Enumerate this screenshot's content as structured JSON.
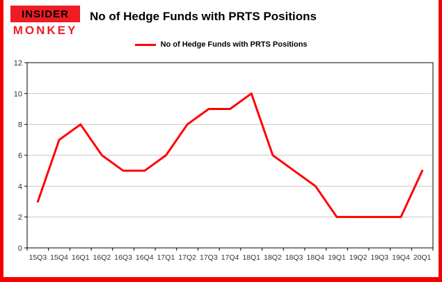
{
  "logo": {
    "line1": "INSIDER",
    "line2": "MONKEY"
  },
  "title": "No of Hedge Funds with PRTS Positions",
  "legend": {
    "label": "No of Hedge Funds with PRTS Positions"
  },
  "colors": {
    "line": "#ff0000",
    "frame": "#f40000",
    "logo_bg": "#ee1c25",
    "grid": "#c6c6c6",
    "axis_text": "#333333",
    "plot_border": "#000000"
  },
  "chart_data": {
    "type": "line",
    "title": "No of Hedge Funds with PRTS Positions",
    "categories": [
      "15Q3",
      "15Q4",
      "16Q1",
      "16Q2",
      "16Q3",
      "16Q4",
      "17Q1",
      "17Q2",
      "17Q3",
      "17Q4",
      "18Q1",
      "18Q2",
      "18Q3",
      "18Q4",
      "19Q1",
      "19Q2",
      "19Q3",
      "19Q4",
      "20Q1"
    ],
    "series": [
      {
        "name": "No of Hedge Funds with PRTS Positions",
        "values": [
          3,
          7,
          8,
          6,
          5,
          5,
          6,
          8,
          9,
          9,
          10,
          6,
          5,
          4,
          2,
          2,
          2,
          2,
          5
        ]
      }
    ],
    "xlabel": "",
    "ylabel": "",
    "ylim": [
      0,
      12
    ],
    "ytick_step": 2,
    "grid": true,
    "legend_position": "top"
  }
}
